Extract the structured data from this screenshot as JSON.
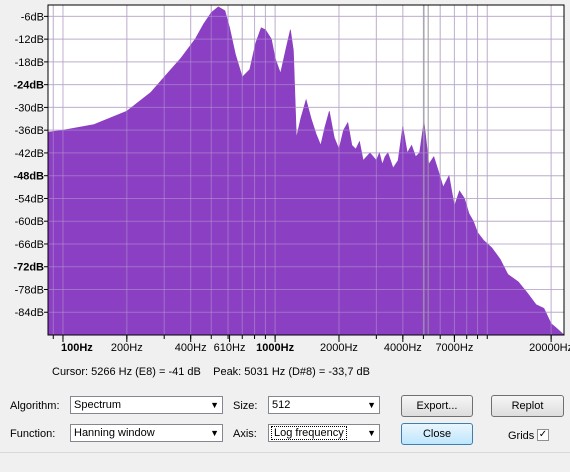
{
  "chart_data": {
    "type": "area",
    "title": "",
    "xlabel": "",
    "ylabel": "",
    "x_scale": "log",
    "xlim": [
      85,
      23000
    ],
    "ylim": [
      -90,
      -3
    ],
    "grid": true,
    "fill_color": "#8b3fc3",
    "y_ticks": [
      "-6dB",
      "-12dB",
      "-18dB",
      "-24dB",
      "-30dB",
      "-36dB",
      "-42dB",
      "-48dB",
      "-54dB",
      "-60dB",
      "-66dB",
      "-72dB",
      "-78dB",
      "-84dB"
    ],
    "y_tick_values": [
      -6,
      -12,
      -18,
      -24,
      -30,
      -36,
      -42,
      -48,
      -54,
      -60,
      -66,
      -72,
      -78,
      -84
    ],
    "y_bold_ticks": [
      -24,
      -48,
      -72
    ],
    "x_ticks": [
      "100Hz",
      "200Hz",
      "400Hz",
      "610Hz",
      "1000Hz",
      "2000Hz",
      "4000Hz",
      "7000Hz",
      "20000Hz"
    ],
    "x_tick_values": [
      100,
      200,
      400,
      610,
      1000,
      2000,
      4000,
      7000,
      20000
    ],
    "x_bold_ticks": [
      100,
      1000
    ],
    "series": [
      {
        "x": [
          85,
          100,
          140,
          200,
          260,
          300,
          360,
          420,
          460,
          500,
          540,
          580,
          610,
          650,
          700,
          760,
          810,
          860,
          900,
          960,
          1000,
          1060,
          1120,
          1180,
          1220,
          1260,
          1320,
          1400,
          1480,
          1560,
          1640,
          1720,
          1800,
          1900,
          2000,
          2100,
          2200,
          2300,
          2400,
          2500,
          2600,
          2700,
          2800,
          2900,
          3000,
          3100,
          3200,
          3300,
          3400,
          3600,
          3800,
          4000,
          4200,
          4400,
          4600,
          4800,
          5031,
          5300,
          5600,
          5900,
          6200,
          6600,
          7000,
          7400,
          7800,
          8200,
          8600,
          9000,
          9600,
          10500,
          11500,
          12500,
          14000,
          15500,
          17000,
          18500,
          20000,
          21000,
          22000,
          23000
        ],
        "y": [
          -36.5,
          -36,
          -34.5,
          -31,
          -26,
          -22,
          -17,
          -12,
          -8,
          -5,
          -3.5,
          -4.5,
          -9,
          -16,
          -22,
          -20,
          -13,
          -9,
          -9.5,
          -12,
          -17,
          -21,
          -15,
          -9.5,
          -15,
          -38,
          -33,
          -28,
          -33,
          -37,
          -40,
          -35,
          -31,
          -38,
          -41,
          -36,
          -34,
          -40,
          -41,
          -39,
          -44,
          -43,
          -42,
          -43,
          -44,
          -42,
          -45,
          -43,
          -42,
          -46,
          -44,
          -35,
          -42,
          -40,
          -43,
          -42,
          -33.7,
          -45,
          -43,
          -47,
          -51,
          -48,
          -56,
          -52,
          -54,
          -58,
          -60,
          -63,
          -65,
          -67,
          -70,
          -74,
          -76,
          -79,
          -82,
          -83,
          -87,
          -88,
          -89,
          -90
        ]
      }
    ]
  },
  "status": {
    "cursor": "Cursor: 5266 Hz (E8) = -41 dB",
    "peak": "Peak: 5031 Hz (D#8) = -33,7 dB"
  },
  "controls": {
    "algorithm_label": "Algorithm:",
    "algorithm_value": "Spectrum",
    "size_label": "Size:",
    "size_value": "512",
    "function_label": "Function:",
    "function_value": "Hanning window",
    "axis_label": "Axis:",
    "axis_value": "Log frequency",
    "export_label": "Export...",
    "replot_label": "Replot",
    "close_label": "Close",
    "grids_label": "Grids",
    "grids_checked": true,
    "dropdown_icon": "chevron-down-icon",
    "check_icon": "checkmark-icon"
  }
}
